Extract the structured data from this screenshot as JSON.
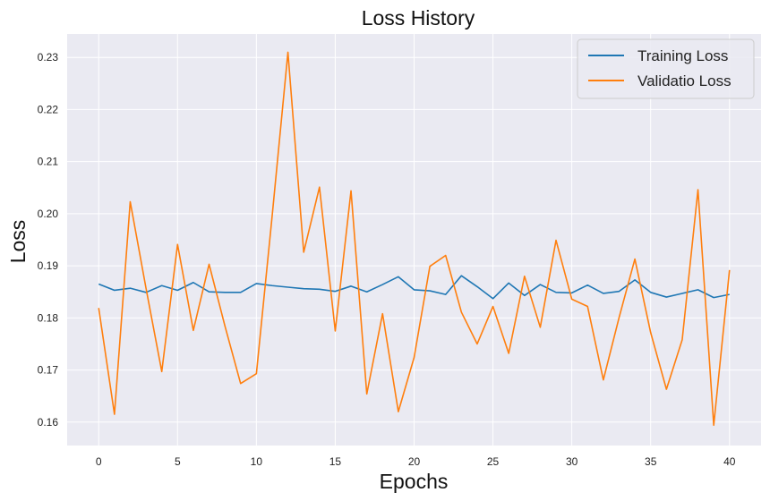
{
  "chart_data": {
    "type": "line",
    "title": "Loss History",
    "xlabel": "Epochs",
    "ylabel": "Loss",
    "xlim": [
      -2,
      42
    ],
    "ylim": [
      0.1555,
      0.2345
    ],
    "x_ticks": [
      0,
      5,
      10,
      15,
      20,
      25,
      30,
      35,
      40
    ],
    "y_ticks": [
      0.16,
      0.17,
      0.18,
      0.19,
      0.2,
      0.21,
      0.22,
      0.23
    ],
    "y_tick_labels": [
      "0.16",
      "0.17",
      "0.18",
      "0.19",
      "0.20",
      "0.21",
      "0.22",
      "0.23"
    ],
    "grid": true,
    "legend_position": "top-right",
    "x": [
      0,
      1,
      2,
      3,
      4,
      5,
      6,
      7,
      8,
      9,
      10,
      11,
      12,
      13,
      14,
      15,
      16,
      17,
      18,
      19,
      20,
      21,
      22,
      23,
      24,
      25,
      26,
      27,
      28,
      29,
      30,
      31,
      32,
      33,
      34,
      35,
      36,
      37,
      38,
      39,
      40
    ],
    "series": [
      {
        "name": "Training Loss",
        "color": "#1f77b4",
        "values": [
          0.1865,
          0.1853,
          0.1857,
          0.1849,
          0.1862,
          0.1853,
          0.1868,
          0.185,
          0.1849,
          0.1849,
          0.1866,
          0.1862,
          0.1859,
          0.1856,
          0.1855,
          0.1851,
          0.1861,
          0.185,
          0.1864,
          0.1879,
          0.1854,
          0.1852,
          0.1845,
          0.1881,
          0.186,
          0.1837,
          0.1867,
          0.1843,
          0.1864,
          0.1849,
          0.1848,
          0.1863,
          0.1847,
          0.1851,
          0.1873,
          0.1849,
          0.184,
          0.1847,
          0.1854,
          0.1839,
          0.1845
        ]
      },
      {
        "name": "Validatio Loss",
        "color": "#ff7f0e",
        "values": [
          0.1819,
          0.1615,
          0.2023,
          0.1857,
          0.1697,
          0.1941,
          0.1776,
          0.1903,
          0.1785,
          0.1674,
          0.1693,
          0.1996,
          0.231,
          0.1926,
          0.2051,
          0.1775,
          0.2044,
          0.1654,
          0.1808,
          0.162,
          0.1724,
          0.1899,
          0.192,
          0.1811,
          0.175,
          0.1822,
          0.1732,
          0.188,
          0.1782,
          0.1949,
          0.1836,
          0.1822,
          0.1681,
          0.1801,
          0.1913,
          0.1772,
          0.1663,
          0.1758,
          0.2046,
          0.1594,
          0.1892
        ]
      }
    ]
  }
}
